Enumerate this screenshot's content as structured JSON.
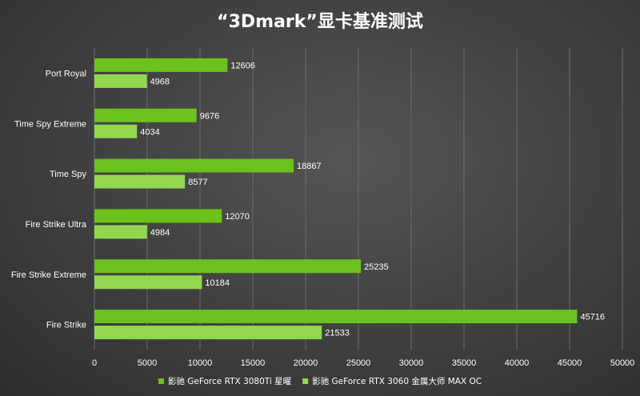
{
  "chart_data": {
    "type": "bar",
    "orientation": "horizontal",
    "title": "“3Dmark”显卡基准测试",
    "categories": [
      "Port Royal",
      "Time Spy Extreme",
      "Time Spy",
      "Fire Strike Ultra",
      "Fire Strike Extreme",
      "Fire Strike"
    ],
    "series": [
      {
        "name": "影驰 GeForce RTX 3080Ti 星曜",
        "color": "#6cc21c",
        "values": [
          12606,
          9676,
          18867,
          12070,
          25235,
          45716
        ]
      },
      {
        "name": "影驰 GeForce RTX 3060 金属大师 MAX OC",
        "color": "#92d84e",
        "values": [
          4968,
          4034,
          8577,
          4984,
          10184,
          21533
        ]
      }
    ],
    "xlim": [
      0,
      50000
    ],
    "xticks": [
      0,
      5000,
      10000,
      15000,
      20000,
      25000,
      30000,
      35000,
      40000,
      45000,
      50000
    ],
    "xlabel": "",
    "ylabel": "",
    "grid": true,
    "legend": "bottom-center"
  }
}
